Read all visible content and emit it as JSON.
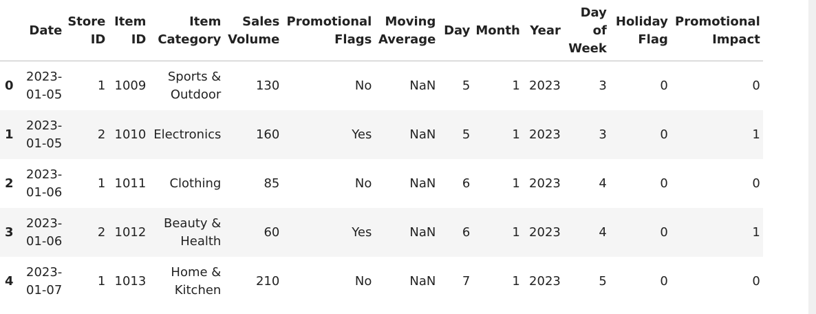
{
  "table": {
    "columns": [
      "Date",
      "Store ID",
      "Item ID",
      "Item Category",
      "Sales Volume",
      "Promotional Flags",
      "Moving Average",
      "Day",
      "Month",
      "Year",
      "Day of Week",
      "Holiday Flag",
      "Promotional Impact"
    ],
    "rows": [
      {
        "index": "0",
        "date": "2023-01-05",
        "store_id": "1",
        "item_id": "1009",
        "category": "Sports & Outdoor",
        "sales_volume": "130",
        "promotional_flags": "No",
        "moving_average": "NaN",
        "day": "5",
        "month": "1",
        "year": "2023",
        "day_of_week": "3",
        "holiday_flag": "0",
        "promotional_impact": "0"
      },
      {
        "index": "1",
        "date": "2023-01-05",
        "store_id": "2",
        "item_id": "1010",
        "category": "Electronics",
        "sales_volume": "160",
        "promotional_flags": "Yes",
        "moving_average": "NaN",
        "day": "5",
        "month": "1",
        "year": "2023",
        "day_of_week": "3",
        "holiday_flag": "0",
        "promotional_impact": "1"
      },
      {
        "index": "2",
        "date": "2023-01-06",
        "store_id": "1",
        "item_id": "1011",
        "category": "Clothing",
        "sales_volume": "85",
        "promotional_flags": "No",
        "moving_average": "NaN",
        "day": "6",
        "month": "1",
        "year": "2023",
        "day_of_week": "4",
        "holiday_flag": "0",
        "promotional_impact": "0"
      },
      {
        "index": "3",
        "date": "2023-01-06",
        "store_id": "2",
        "item_id": "1012",
        "category": "Beauty & Health",
        "sales_volume": "60",
        "promotional_flags": "Yes",
        "moving_average": "NaN",
        "day": "6",
        "month": "1",
        "year": "2023",
        "day_of_week": "4",
        "holiday_flag": "0",
        "promotional_impact": "1"
      },
      {
        "index": "4",
        "date": "2023-01-07",
        "store_id": "1",
        "item_id": "1013",
        "category": "Home & Kitchen",
        "sales_volume": "210",
        "promotional_flags": "No",
        "moving_average": "NaN",
        "day": "7",
        "month": "1",
        "year": "2023",
        "day_of_week": "5",
        "holiday_flag": "0",
        "promotional_impact": "0"
      }
    ]
  }
}
